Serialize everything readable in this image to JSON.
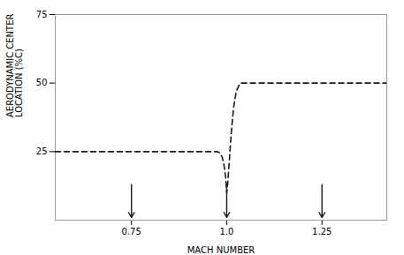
{
  "chart_data": {
    "type": "line",
    "xlabel": "MACH NUMBER",
    "ylabel": "AERODYNAMIC CENTER\nLOCATION (%C)",
    "x": [
      0.55,
      0.65,
      0.75,
      0.8,
      0.85,
      0.88,
      0.9,
      0.92,
      0.94,
      0.955,
      0.965,
      0.975,
      0.982,
      0.988,
      0.993,
      0.997,
      1.0,
      1.003,
      1.007,
      1.012,
      1.018,
      1.025,
      1.035,
      1.05,
      1.07,
      1.1,
      1.15,
      1.25,
      1.35,
      1.42
    ],
    "values": [
      25,
      25,
      25,
      25,
      25,
      25,
      25,
      25,
      25,
      25,
      25,
      25,
      24.5,
      23,
      20,
      16,
      10,
      14,
      22,
      32,
      41,
      47,
      50,
      50,
      50,
      50,
      50,
      50,
      50,
      50
    ],
    "color": "#1a1a1a",
    "line_style": "dashed",
    "arrows": {
      "x": [
        0.75,
        1.0,
        1.25
      ],
      "y_top": [
        13,
        13,
        13
      ],
      "y_bottom": [
        1,
        1,
        1
      ]
    },
    "xlim": [
      0.55,
      1.42
    ],
    "xticks": [
      0.75,
      {
        "value": 1.0,
        "label": "1.0"
      },
      1.25
    ],
    "ylim": [
      0,
      75
    ],
    "yticks": [
      25,
      50,
      75
    ],
    "grid": false
  }
}
